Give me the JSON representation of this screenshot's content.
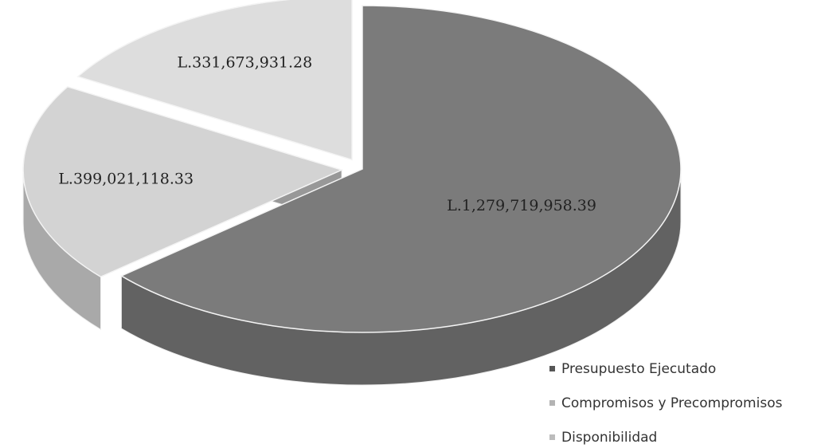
{
  "chart_data": {
    "type": "pie",
    "categories": [
      "Presupuesto Ejecutado",
      "Compromisos y Precompromisos",
      "Disponibilidad"
    ],
    "values": [
      1279719958.39,
      399021118.33,
      331673931.28
    ],
    "value_labels": [
      "L.1,279,719,958.39",
      "L.399,021,118.33",
      "L.331,673,931.28"
    ],
    "colors": [
      "#7b7b7b",
      "#d3d3d3",
      "#dddddd"
    ],
    "legend": "bottom-right"
  }
}
